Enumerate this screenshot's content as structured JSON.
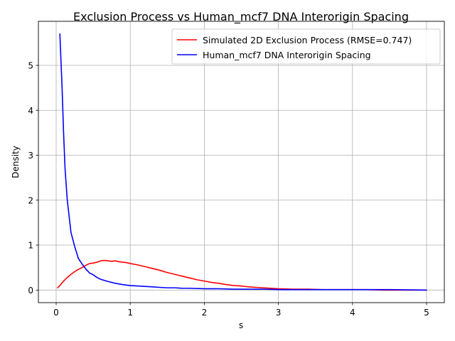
{
  "chart_data": {
    "type": "line",
    "title": "Exclusion Process vs Human_mcf7 DNA Interorigin Spacing",
    "xlabel": "s",
    "ylabel": "Density",
    "xlim": [
      -0.24,
      5.24
    ],
    "ylim": [
      -0.28,
      5.98
    ],
    "xticks": [
      0,
      1,
      2,
      3,
      4,
      5
    ],
    "yticks": [
      0,
      1,
      2,
      3,
      4,
      5
    ],
    "grid": true,
    "legend_position": "top-right",
    "series": [
      {
        "name": "Simulated 2D Exclusion Process (RMSE=0.747)",
        "color": "#ff0000",
        "x": [
          0.02,
          0.05,
          0.1,
          0.15,
          0.2,
          0.25,
          0.3,
          0.35,
          0.4,
          0.45,
          0.5,
          0.55,
          0.6,
          0.65,
          0.7,
          0.75,
          0.8,
          0.85,
          0.9,
          0.95,
          1.0,
          1.1,
          1.2,
          1.3,
          1.4,
          1.5,
          1.6,
          1.7,
          1.8,
          1.9,
          2.0,
          2.1,
          2.2,
          2.3,
          2.4,
          2.5,
          2.6,
          2.7,
          2.8,
          2.9,
          3.0,
          3.2,
          3.4,
          3.6,
          3.8,
          4.0,
          4.2,
          4.4,
          4.6,
          4.8,
          5.0
        ],
        "values": [
          0.05,
          0.1,
          0.2,
          0.28,
          0.35,
          0.41,
          0.46,
          0.5,
          0.55,
          0.59,
          0.6,
          0.62,
          0.65,
          0.66,
          0.65,
          0.64,
          0.65,
          0.63,
          0.62,
          0.61,
          0.59,
          0.56,
          0.52,
          0.48,
          0.44,
          0.39,
          0.35,
          0.31,
          0.27,
          0.23,
          0.2,
          0.17,
          0.15,
          0.12,
          0.1,
          0.09,
          0.07,
          0.06,
          0.05,
          0.04,
          0.03,
          0.02,
          0.02,
          0.01,
          0.01,
          0.01,
          0.01,
          0.0,
          0.0,
          0.0,
          0.0
        ]
      },
      {
        "name": "Human_mcf7 DNA Interorigin Spacing",
        "color": "#0000ff",
        "x": [
          0.05,
          0.08,
          0.1,
          0.12,
          0.15,
          0.2,
          0.25,
          0.3,
          0.35,
          0.4,
          0.45,
          0.5,
          0.55,
          0.6,
          0.7,
          0.8,
          0.9,
          1.0,
          1.1,
          1.2,
          1.3,
          1.4,
          1.5,
          1.6,
          1.7,
          1.8,
          2.0,
          2.2,
          2.4,
          2.6,
          2.8,
          3.0,
          3.5,
          4.0,
          4.5,
          5.0
        ],
        "values": [
          5.7,
          4.5,
          3.5,
          2.7,
          2.0,
          1.28,
          0.97,
          0.7,
          0.58,
          0.47,
          0.38,
          0.34,
          0.28,
          0.24,
          0.19,
          0.15,
          0.12,
          0.1,
          0.09,
          0.08,
          0.07,
          0.06,
          0.05,
          0.05,
          0.04,
          0.04,
          0.03,
          0.03,
          0.02,
          0.02,
          0.02,
          0.01,
          0.01,
          0.01,
          0.01,
          0.0
        ]
      }
    ],
    "colors": {
      "axis": "#000000",
      "grid": "#b0b0b0",
      "legend_border": "#cccccc"
    }
  }
}
